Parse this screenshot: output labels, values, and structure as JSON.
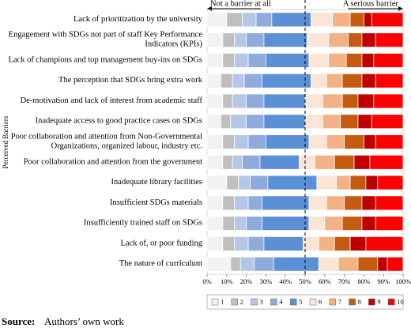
{
  "chart_data": {
    "type": "stacked-barh",
    "y_label": "Perceived Barriers",
    "left_annotation": "Not a barrier at all",
    "right_annotation": "A serious barrier",
    "source_label": "Source:",
    "source_text": "Authors’ own work",
    "categories": [
      "Lack of prioritization by the university",
      "Engagement with SDGs not part of staff Key Performance Indicators (KPIs)",
      "Lack of champions and top management buy-ins on SDGs",
      "The perception that SDGs bring extra work",
      "De-motivation and lack of interest from academic staff",
      "Inadequate access to good practice cases on SDGs",
      "Poor collaboration and attention from Non-Governmental Organizations, organized labour, industry etc.",
      "Poor collaboration and attention from the government",
      "Inadequate library facilities",
      "Insufficient SDGs materials",
      "Insufficiently trained staff on SDGs",
      "Lack of, or poor funding",
      "The nature of curriculum"
    ],
    "series": [
      {
        "name": "1",
        "color": "#f2f2f2",
        "values": [
          10,
          8,
          8,
          7,
          8,
          7,
          8,
          8,
          10,
          8,
          8,
          8,
          12
        ]
      },
      {
        "name": "2",
        "color": "#bfbfbf",
        "values": [
          8,
          6,
          6,
          6,
          5,
          5,
          6,
          5,
          6,
          6,
          6,
          6,
          5
        ]
      },
      {
        "name": "3",
        "color": "#b4c7e7",
        "values": [
          7,
          6,
          7,
          6,
          7,
          8,
          7,
          5,
          6,
          7,
          6,
          7,
          7
        ]
      },
      {
        "name": "4",
        "color": "#8faadc",
        "values": [
          8,
          9,
          9,
          9,
          9,
          9,
          9,
          9,
          9,
          7,
          8,
          8,
          10
        ]
      },
      {
        "name": "5",
        "color": "#5b8fd6",
        "values": [
          20,
          22,
          22,
          25,
          21,
          21,
          22,
          20,
          25,
          24,
          24,
          20,
          23
        ]
      },
      {
        "name": "6",
        "color": "#fbe5d6",
        "values": [
          11,
          11,
          10,
          8,
          9,
          9,
          9,
          8,
          10,
          9,
          8,
          8,
          10
        ]
      },
      {
        "name": "7",
        "color": "#f4b183",
        "values": [
          9,
          10,
          9,
          8,
          10,
          9,
          9,
          10,
          7,
          9,
          9,
          8,
          10
        ]
      },
      {
        "name": "8",
        "color": "#c55a11",
        "values": [
          7,
          7,
          8,
          10,
          8,
          9,
          10,
          10,
          8,
          9,
          10,
          8,
          10
        ]
      },
      {
        "name": "9",
        "color": "#c00000",
        "values": [
          4,
          7,
          6,
          7,
          8,
          7,
          6,
          8,
          6,
          7,
          7,
          8,
          5
        ]
      },
      {
        "name": "10",
        "color": "#ff0000",
        "values": [
          16,
          14,
          15,
          14,
          15,
          16,
          14,
          17,
          13,
          14,
          14,
          19,
          8
        ]
      }
    ],
    "xlim": [
      0,
      100
    ],
    "xticks": [
      {
        "value": 0,
        "label": "0%"
      },
      {
        "value": 10,
        "label": "10%"
      },
      {
        "value": 20,
        "label": "20%"
      },
      {
        "value": 30,
        "label": "30%"
      },
      {
        "value": 40,
        "label": "40%"
      },
      {
        "value": 50,
        "label": "50%"
      },
      {
        "value": 60,
        "label": "60%"
      },
      {
        "value": 70,
        "label": "70%"
      },
      {
        "value": 80,
        "label": "80%"
      },
      {
        "value": 90,
        "label": "90%"
      },
      {
        "value": 100,
        "label": "100%"
      }
    ],
    "reference_line": 50,
    "legend": "bottom"
  }
}
